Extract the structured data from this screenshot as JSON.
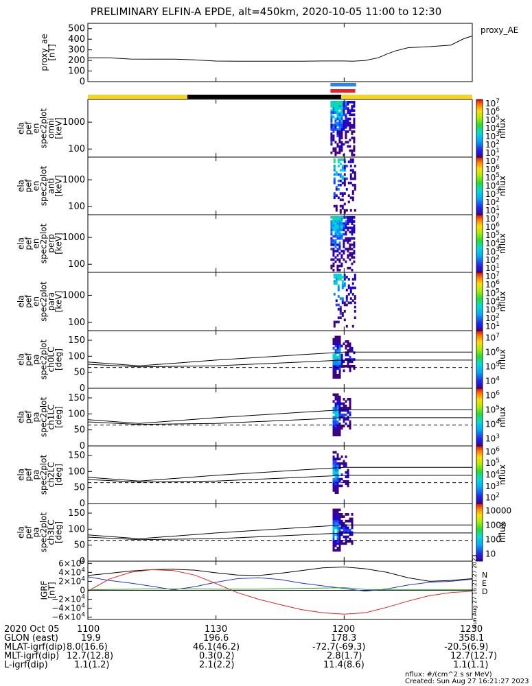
{
  "title": "PRELIMINARY ELFIN-A EPDE, alt=450km, 2020-10-05 11:00 to 12:30",
  "colors": {
    "status_yellow": "#f5d61a",
    "status_black": "#000000",
    "orbit_blue": "#2a86e6",
    "orbit_red": "#ee1c24",
    "grf_n": "#000000",
    "grf_e": "#2233cc",
    "grf_d": "#dd2222",
    "grf_green": "#22aa22"
  },
  "time_axis": {
    "start_min": 0,
    "end_min": 90,
    "ticks": [
      {
        "min": 0,
        "label": "1100"
      },
      {
        "min": 30,
        "label": "1130"
      },
      {
        "min": 60,
        "label": "1200"
      },
      {
        "min": 90,
        "label": "1230"
      }
    ]
  },
  "ephemeris": {
    "row_labels": [
      "2020 Oct 05",
      "GLON (east)",
      "MLAT-igrf(dip)",
      "MLT-igrf(dip)",
      "L-igrf(dip)"
    ],
    "columns": [
      {
        "time": "1100",
        "glon": "19.9",
        "mlat": "8.0(16.6)",
        "mlt": "12.7(12.8)",
        "l": "1.1(1.2)"
      },
      {
        "time": "1130",
        "glon": "196.6",
        "mlat": "46.1(46.2)",
        "mlt": "0.3(0.2)",
        "l": "2.1(2.2)"
      },
      {
        "time": "1200",
        "glon": "178.3",
        "mlat": "-72.7(-69.3)",
        "mlt": "2.8(1.7)",
        "l": "11.4(8.6)"
      },
      {
        "time": "1230",
        "glon": "358.1",
        "mlat": "-20.5(6.9)",
        "mlt": "12.7(12.7)",
        "l": "1.1(1.1)"
      }
    ]
  },
  "footer": {
    "units": "nflux: #/(cm^2 s sr MeV)",
    "created": "Created: Sun Aug 27 16:21:27 2023",
    "side_stamp": "Sun Aug 27 16:21:27 2023"
  },
  "status_bar": {
    "segments": [
      {
        "start_min": 0,
        "end_min": 23.3,
        "color": "yellow"
      },
      {
        "start_min": 23.3,
        "end_min": 59.3,
        "color": "black"
      },
      {
        "start_min": 59.3,
        "end_min": 90,
        "color": "yellow"
      }
    ],
    "orbit_blue": {
      "start_min": 56.8,
      "end_min": 62.8
    },
    "orbit_red": {
      "start_min": 56.8,
      "end_min": 62.6
    }
  },
  "chart_data": [
    {
      "type": "line",
      "panel": "proxy_ae",
      "ylabel": [
        "proxy_ae",
        "[nT]"
      ],
      "legend": "proxy_AE",
      "ylim": [
        0,
        550
      ],
      "yticks": [
        "0",
        "100",
        "200",
        "300",
        "400",
        "500"
      ],
      "x_min": [
        0,
        5,
        10,
        15,
        20,
        25,
        30,
        35,
        40,
        45,
        50,
        55,
        60,
        62,
        65,
        68,
        70,
        72,
        75,
        80,
        85,
        88,
        90
      ],
      "y": [
        225,
        225,
        213,
        212,
        212,
        205,
        194,
        193,
        193,
        193,
        192,
        195,
        195,
        193,
        200,
        225,
        260,
        290,
        320,
        330,
        345,
        405,
        430
      ]
    },
    {
      "type": "heatmap",
      "panel": "spec2plot_omni",
      "ylabel": [
        "ela",
        "pef",
        "en",
        "spec2plot",
        "omni",
        "[keV]"
      ],
      "ylim_keV": [
        50,
        7000
      ],
      "log_y": true,
      "yticks": [
        "100",
        "1000"
      ],
      "colorbar": {
        "label": "nflux",
        "ticks": [
          "10^1",
          "10^2",
          "10^3",
          "10^4",
          "10^5",
          "10^6",
          "10^7"
        ]
      },
      "active_x_min": [
        56.8,
        62.6
      ]
    },
    {
      "type": "heatmap",
      "panel": "spec2plot_anti",
      "ylabel": [
        "ela",
        "pef",
        "en",
        "spec2plot",
        "anti",
        "[keV]"
      ],
      "ylim_keV": [
        50,
        7000
      ],
      "log_y": true,
      "yticks": [
        "100",
        "1000"
      ],
      "colorbar": {
        "label": "nflux",
        "ticks": [
          "10^1",
          "10^2",
          "10^3",
          "10^4",
          "10^5",
          "10^6",
          "10^7"
        ]
      },
      "active_x_min": [
        57.5,
        62.6
      ]
    },
    {
      "type": "heatmap",
      "panel": "spec2plot_perp",
      "ylabel": [
        "ela",
        "pef",
        "en",
        "spec2plot",
        "perp",
        "[keV]"
      ],
      "ylim_keV": [
        50,
        7000
      ],
      "log_y": true,
      "yticks": [
        "100",
        "1000"
      ],
      "colorbar": {
        "label": "nflux",
        "ticks": [
          "10^1",
          "10^2",
          "10^3",
          "10^4",
          "10^5",
          "10^6",
          "10^7"
        ]
      },
      "active_x_min": [
        56.8,
        62.6
      ]
    },
    {
      "type": "heatmap",
      "panel": "spec2plot_para",
      "ylabel": [
        "ela",
        "pef",
        "en",
        "spec2plot",
        "para",
        "[keV]"
      ],
      "ylim_keV": [
        50,
        7000
      ],
      "log_y": true,
      "yticks": [
        "100",
        "1000"
      ],
      "colorbar": {
        "label": "nflux",
        "ticks": [
          "10^1",
          "10^2",
          "10^3",
          "10^4",
          "10^5",
          "10^6",
          "10^7"
        ]
      },
      "active_x_min": [
        57.5,
        62.6
      ]
    },
    {
      "type": "heatmap",
      "panel": "spec2plot_ch0LC",
      "ylabel": [
        "ela",
        "pef",
        "pa",
        "spec2plot",
        "ch0LC",
        "[deg]"
      ],
      "ylim": [
        0,
        180
      ],
      "yticks": [
        "0",
        "50",
        "100",
        "150"
      ],
      "colorbar": {
        "label": "nflux",
        "ticks": [
          "10^4",
          "10^5",
          "10^6",
          "10^7"
        ]
      },
      "lines": {
        "x_min": [
          0,
          12,
          30,
          50,
          60,
          90
        ],
        "upper": [
          82,
          70,
          88,
          105,
          113,
          113
        ],
        "lower": [
          75,
          67,
          70,
          82,
          88,
          88
        ],
        "dashed": 65
      },
      "active_x_min": [
        57.3,
        62.6
      ]
    },
    {
      "type": "heatmap",
      "panel": "spec2plot_ch1LC",
      "ylabel": [
        "ela",
        "pef",
        "pa",
        "spec2plot",
        "ch1LC",
        "[deg]"
      ],
      "ylim": [
        0,
        180
      ],
      "yticks": [
        "0",
        "50",
        "100",
        "150"
      ],
      "colorbar": {
        "label": "nflux",
        "ticks": [
          "10^3",
          "10^4",
          "10^5",
          "10^6"
        ]
      },
      "lines": {
        "x_min": [
          0,
          12,
          30,
          50,
          60,
          90
        ],
        "upper": [
          82,
          70,
          88,
          105,
          113,
          113
        ],
        "lower": [
          75,
          67,
          70,
          82,
          88,
          88
        ],
        "dashed": 65
      },
      "active_x_min": [
        57.3,
        61.8
      ]
    },
    {
      "type": "heatmap",
      "panel": "spec2plot_ch2LC",
      "ylabel": [
        "ela",
        "pef",
        "pa",
        "spec2plot",
        "ch2LC",
        "[deg]"
      ],
      "ylim": [
        0,
        180
      ],
      "yticks": [
        "0",
        "50",
        "100",
        "150"
      ],
      "colorbar": {
        "label": "nflux",
        "ticks": [
          "10^2",
          "10^3",
          "10^4",
          "10^5",
          "10^6"
        ]
      },
      "lines": {
        "x_min": [
          0,
          12,
          30,
          50,
          60,
          90
        ],
        "upper": [
          82,
          70,
          88,
          105,
          113,
          113
        ],
        "lower": [
          75,
          67,
          70,
          82,
          88,
          88
        ],
        "dashed": 65
      },
      "active_x_min": [
        57.3,
        61.2
      ]
    },
    {
      "type": "heatmap",
      "panel": "spec2plot_ch3LC",
      "ylabel": [
        "ela",
        "pef",
        "pa",
        "spec2plot",
        "ch3LC",
        "[deg]"
      ],
      "ylim": [
        0,
        180
      ],
      "yticks": [
        "0",
        "50",
        "100",
        "150"
      ],
      "colorbar": {
        "label": "nflux",
        "ticks": [
          "10",
          "100",
          "1000",
          "10000"
        ]
      },
      "lines": {
        "x_min": [
          0,
          12,
          30,
          50,
          60,
          90
        ],
        "upper": [
          82,
          70,
          88,
          105,
          113,
          113
        ],
        "lower": [
          75,
          67,
          70,
          82,
          88,
          88
        ],
        "dashed": 65
      },
      "active_x_min": [
        57.3,
        62.2
      ]
    },
    {
      "type": "line",
      "panel": "IGRF",
      "ylabel": [
        "IGRF",
        "[nT]"
      ],
      "ylim": [
        -65000,
        65000
      ],
      "yticks": [
        "6×10^4",
        "4×10^4",
        "2×10^4",
        "0",
        "−2×10^4",
        "−4×10^4",
        "−6×10^4"
      ],
      "legend": [
        "N",
        "E",
        "D"
      ],
      "x_min": [
        0,
        5,
        10,
        15,
        20,
        25,
        30,
        35,
        40,
        45,
        50,
        55,
        60,
        65,
        70,
        75,
        80,
        85,
        90
      ],
      "series": [
        {
          "name": "N",
          "values": [
            33000,
            38000,
            43000,
            46000,
            47000,
            45000,
            39000,
            34000,
            33000,
            38000,
            44000,
            50000,
            52000,
            48000,
            40000,
            28000,
            20000,
            22000,
            26000
          ]
        },
        {
          "name": "E",
          "values": [
            30000,
            22000,
            16000,
            9000,
            1000,
            8000,
            18000,
            26000,
            28000,
            24000,
            16000,
            10000,
            4000,
            -2000,
            3000,
            12000,
            18000,
            20000,
            25000
          ]
        },
        {
          "name": "D",
          "values": [
            -2000,
            25000,
            40000,
            46000,
            44000,
            34000,
            15000,
            -5000,
            -20000,
            -32000,
            -43000,
            -50000,
            -53000,
            -50000,
            -38000,
            -24000,
            -12000,
            -5000,
            -2000
          ]
        },
        {
          "name": "",
          "values": [
            1000,
            2000,
            2500,
            3000,
            3000,
            3000,
            2500,
            2500,
            2500,
            3500,
            4500,
            5000,
            6000,
            2000,
            1000,
            1000,
            1000,
            1000,
            1000
          ]
        }
      ]
    }
  ]
}
